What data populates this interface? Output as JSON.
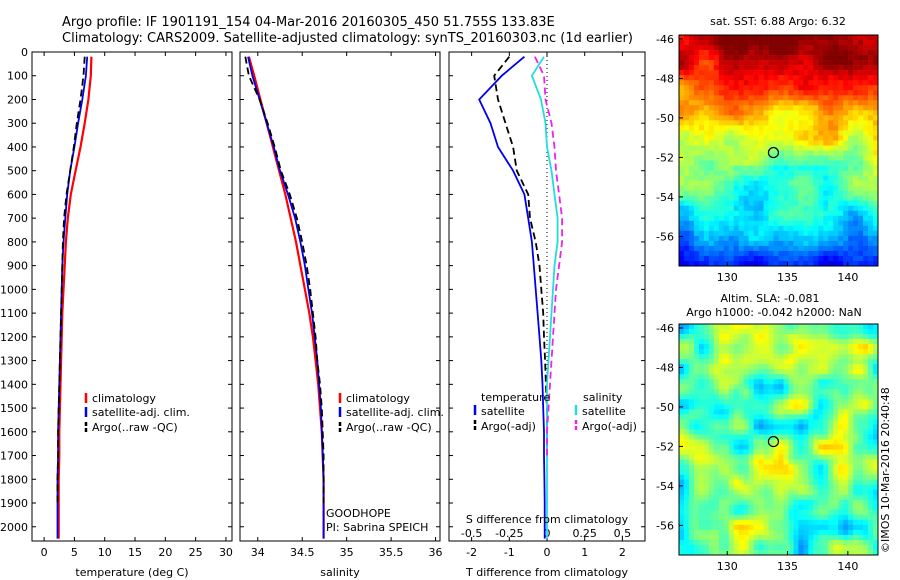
{
  "header": {
    "title_line1": "Argo profile: IF 1901191_154 04-Mar-2016 20160305_450 51.755S 133.83E",
    "title_line2": "Climatology: CARS2009. Satellite-adjusted climatology: synTS_20160303.nc (1d earlier)"
  },
  "colors": {
    "climatology": "#ff0000",
    "satellite": "#0000ee",
    "argo": "#000000",
    "sal_satellite": "#22dddd",
    "sal_argo": "#ee22ee"
  },
  "chart_data": [
    {
      "type": "line",
      "xlabel": "temperature (deg C)",
      "ylabel": "",
      "xlim": [
        -2,
        31
      ],
      "ylim": [
        2060,
        0
      ],
      "xticks": [
        0,
        5,
        10,
        15,
        20,
        25,
        30
      ],
      "yticks": [
        0,
        100,
        200,
        300,
        400,
        500,
        600,
        700,
        800,
        900,
        1000,
        1100,
        1200,
        1300,
        1400,
        1500,
        1600,
        1700,
        1800,
        1900,
        2000
      ],
      "legend_position": "center-right",
      "series": [
        {
          "name": "climatology",
          "color": "#ff0000",
          "style": "solid",
          "x": [
            7.8,
            7.7,
            7.3,
            6.7,
            6.0,
            5.2,
            4.4,
            3.9,
            3.6,
            3.4,
            3.2,
            3.0,
            2.9,
            2.8,
            2.7,
            2.6,
            2.5,
            2.5,
            2.4,
            2.4,
            2.4
          ],
          "y": [
            20,
            100,
            200,
            300,
            400,
            500,
            600,
            700,
            800,
            900,
            1000,
            1100,
            1200,
            1300,
            1400,
            1500,
            1600,
            1700,
            1800,
            1900,
            2050
          ]
        },
        {
          "name": "satellite-adj. clim.",
          "color": "#0000ee",
          "style": "solid",
          "x": [
            7.1,
            6.9,
            6.3,
            5.6,
            5.0,
            4.3,
            3.8,
            3.5,
            3.2,
            3.0,
            2.9,
            2.8,
            2.7,
            2.6,
            2.5,
            2.4,
            2.3,
            2.3,
            2.2,
            2.2,
            2.2
          ],
          "y": [
            20,
            100,
            200,
            300,
            400,
            500,
            600,
            700,
            800,
            900,
            1000,
            1100,
            1200,
            1300,
            1400,
            1500,
            1600,
            1700,
            1800,
            1900,
            2050
          ]
        },
        {
          "name": "Argo(..raw -QC)",
          "color": "#000000",
          "style": "dash",
          "x": [
            6.7,
            6.5,
            6.0,
            5.4,
            4.9,
            4.3,
            3.7,
            3.3,
            3.1,
            3.0,
            2.9,
            2.8,
            2.7,
            2.6,
            2.5,
            2.4,
            2.3,
            2.3,
            2.2,
            2.2
          ],
          "y": [
            20,
            100,
            200,
            300,
            400,
            500,
            600,
            700,
            800,
            900,
            1000,
            1100,
            1200,
            1300,
            1400,
            1500,
            1600,
            1700,
            1800,
            1900
          ]
        }
      ],
      "annotations": []
    },
    {
      "type": "line",
      "xlabel": "salinity",
      "ylabel": "",
      "xlim": [
        33.8,
        36.05
      ],
      "ylim": [
        2060,
        0
      ],
      "xticks": [
        34,
        34.5,
        35,
        35.5,
        36
      ],
      "legend_position": "center-right",
      "series": [
        {
          "name": "climatology",
          "color": "#ff0000",
          "style": "solid",
          "x": [
            33.9,
            33.96,
            34.03,
            34.1,
            34.17,
            34.24,
            34.31,
            34.37,
            34.43,
            34.48,
            34.53,
            34.58,
            34.62,
            34.65,
            34.68,
            34.7,
            34.72,
            34.73,
            34.74,
            34.74,
            34.74
          ],
          "y": [
            20,
            100,
            200,
            300,
            400,
            500,
            600,
            700,
            800,
            900,
            1000,
            1100,
            1200,
            1300,
            1400,
            1500,
            1600,
            1700,
            1800,
            1900,
            2050
          ]
        },
        {
          "name": "satellite-adj. clim.",
          "color": "#0000ee",
          "style": "solid",
          "x": [
            33.89,
            33.94,
            34.02,
            34.1,
            34.18,
            34.25,
            34.34,
            34.42,
            34.48,
            34.53,
            34.57,
            34.61,
            34.64,
            34.67,
            34.69,
            34.71,
            34.72,
            34.73,
            34.74,
            34.74,
            34.74
          ],
          "y": [
            20,
            100,
            200,
            300,
            400,
            500,
            600,
            700,
            800,
            900,
            1000,
            1100,
            1200,
            1300,
            1400,
            1500,
            1600,
            1700,
            1800,
            1900,
            2050
          ]
        },
        {
          "name": "Argo(..raw -QC)",
          "color": "#000000",
          "style": "dash",
          "x": [
            33.86,
            33.9,
            34.02,
            34.11,
            34.19,
            34.26,
            34.36,
            34.44,
            34.5,
            34.55,
            34.59,
            34.62,
            34.65,
            34.67,
            34.7,
            34.72,
            34.73,
            34.74,
            34.74,
            34.74
          ],
          "y": [
            20,
            100,
            200,
            300,
            400,
            500,
            600,
            700,
            800,
            900,
            1000,
            1100,
            1200,
            1300,
            1400,
            1500,
            1600,
            1700,
            1800,
            1900
          ]
        }
      ],
      "annotations": [
        "GOODHOPE",
        "PI: Sabrina SPEICH"
      ]
    },
    {
      "type": "line",
      "xlabel": "T difference from climatology",
      "x2label": "S difference from climatology",
      "ylabel": "",
      "xlim": [
        -2.6,
        2.6
      ],
      "ylim": [
        2060,
        0
      ],
      "xticks": [
        -2,
        -1,
        0,
        1,
        2
      ],
      "xticklabels": [
        "-2",
        "-1",
        "0",
        "1",
        "2"
      ],
      "x2ticks": [
        -0.5,
        -0.25,
        0,
        0.25,
        0.5
      ],
      "x2ticklabels": [
        "-0.5",
        "-0.25",
        "0",
        "0.25",
        "0.5"
      ],
      "legend_groups": [
        "temperature",
        "salinity"
      ],
      "series": [
        {
          "name": "satellite",
          "group": "temperature",
          "color": "#0000ee",
          "style": "solid",
          "x": [
            -0.6,
            -1.2,
            -1.8,
            -1.5,
            -1.3,
            -0.9,
            -0.6,
            -0.5,
            -0.4,
            -0.35,
            -0.3,
            -0.25,
            -0.2,
            -0.15,
            -0.12,
            -0.1,
            -0.08,
            -0.08,
            -0.07,
            -0.06,
            -0.06
          ],
          "y": [
            20,
            100,
            200,
            300,
            400,
            500,
            600,
            700,
            800,
            900,
            1000,
            1100,
            1200,
            1300,
            1400,
            1500,
            1600,
            1700,
            1800,
            1900,
            2050
          ]
        },
        {
          "name": "Argo(-adj)",
          "group": "temperature",
          "color": "#000000",
          "style": "dash",
          "x": [
            -1.0,
            -1.4,
            -1.3,
            -1.1,
            -0.9,
            -0.8,
            -0.5,
            -0.45,
            -0.3,
            -0.2,
            -0.15,
            -0.1,
            -0.08,
            -0.05,
            -0.03,
            0.0,
            0.0,
            0.0
          ],
          "y": [
            20,
            100,
            200,
            300,
            400,
            500,
            600,
            700,
            800,
            900,
            1000,
            1100,
            1200,
            1300,
            1400,
            1500,
            1600,
            1700
          ]
        },
        {
          "name": "satellite",
          "group": "salinity",
          "color": "#22dddd",
          "style": "solid",
          "x": [
            -0.02,
            -0.1,
            -0.04,
            -0.01,
            0.0,
            0.03,
            0.05,
            0.07,
            0.07,
            0.05,
            0.04,
            0.03,
            0.02,
            0.01,
            0.0,
            0.0,
            0.0,
            0.0,
            0.0,
            0.0,
            0.0
          ],
          "y": [
            20,
            100,
            200,
            300,
            400,
            500,
            600,
            700,
            800,
            900,
            1000,
            1100,
            1200,
            1300,
            1400,
            1500,
            1600,
            1700,
            1800,
            1900,
            2050
          ]
        },
        {
          "name": "Argo(-adj)",
          "group": "salinity",
          "color": "#ee22ee",
          "style": "dash",
          "x": [
            -0.08,
            -0.02,
            -0.01,
            0.03,
            0.05,
            0.06,
            0.08,
            0.1,
            0.1,
            0.08,
            0.06,
            0.05,
            0.04,
            0.03,
            0.02,
            0.01,
            0.0,
            0.0
          ],
          "y": [
            20,
            100,
            200,
            300,
            400,
            500,
            600,
            700,
            800,
            900,
            1000,
            1100,
            1200,
            1300,
            1400,
            1500,
            1600,
            1700
          ]
        }
      ]
    },
    {
      "type": "heatmap",
      "title": "sat. SST: 6.88 Argo: 6.32",
      "xlim": [
        126,
        142.5
      ],
      "ylim": [
        -57.5,
        -45.8
      ],
      "xticks": [
        130,
        135,
        140
      ],
      "yticks": [
        -46,
        -48,
        -50,
        -52,
        -54,
        -56
      ],
      "marker": {
        "lon": 133.83,
        "lat": -51.755
      }
    },
    {
      "type": "heatmap",
      "title": "Altim. SLA: -0.081",
      "subtitle": "Argo h1000: -0.042 h2000: NaN",
      "xlim": [
        126,
        142.5
      ],
      "ylim": [
        -57.5,
        -45.8
      ],
      "xticks": [
        130,
        135,
        140
      ],
      "yticks": [
        -46,
        -48,
        -50,
        -52,
        -54,
        -56
      ],
      "marker": {
        "lon": 133.83,
        "lat": -51.755
      }
    }
  ],
  "footer": {
    "stamp": "©IMOS 10-Mar-2016 20:40:48"
  }
}
